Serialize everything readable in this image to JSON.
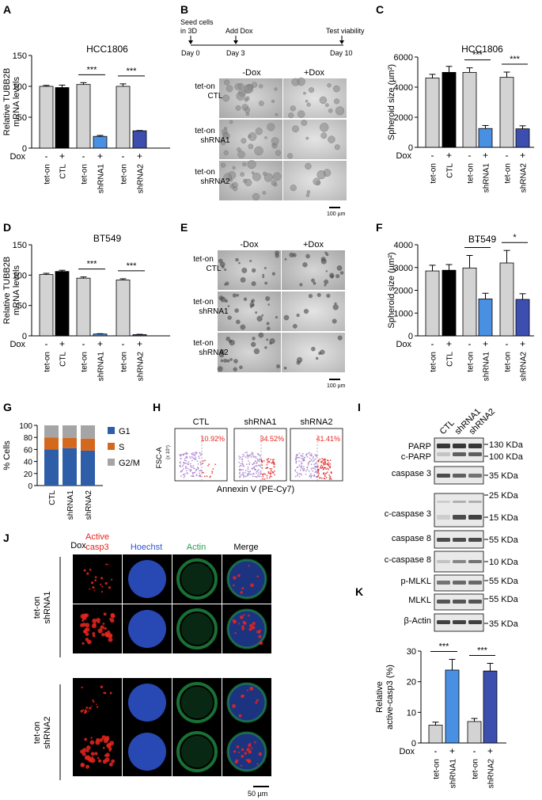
{
  "panels": {
    "A": "A",
    "B": "B",
    "C": "C",
    "D": "D",
    "E": "E",
    "F": "F",
    "G": "G",
    "H": "H",
    "I": "I",
    "J": "J",
    "K": "K"
  },
  "common": {
    "dox": "Dox",
    "minus": "-",
    "plus": "+",
    "tet_on": "tet-on",
    "ctl": "CTL",
    "shrna1": "shRNA1",
    "shrna2": "shRNA2",
    "sig3": "***",
    "sig1": "*",
    "minus_dox": "-Dox",
    "plus_dox": "+Dox",
    "scale_100": "100 µm",
    "scale_50": "50 µm"
  },
  "timeline": {
    "seed": "Seed cells",
    "seed2": "in 3D",
    "add_dox": "Add Dox",
    "test": "Test viability",
    "day0": "Day 0",
    "day3": "Day 3",
    "day10": "Day 10"
  },
  "colors": {
    "ctl_minus": "#d3d3d3",
    "ctl_plus": "#000000",
    "sh1_plus": "#4a90e2",
    "sh2_plus": "#3d4fae",
    "g1": "#2e5ea8",
    "s": "#d4691e",
    "g2m": "#a5a5a5",
    "red": "#e8261e",
    "blue": "#2f55d4",
    "green": "#22a04a"
  },
  "flow": {
    "ylabel": "FSC-A",
    "yunit": "(x 10⁵)",
    "xlabel": "Annexin V (PE-Cy7)",
    "plots": [
      {
        "label": "CTL",
        "pct": "10.92%"
      },
      {
        "label": "shRNA1",
        "pct": "34.52%"
      },
      {
        "label": "shRNA2",
        "pct": "41.41%"
      }
    ]
  },
  "western": {
    "lanes": [
      "CTL",
      "shRNA1",
      "shRNA2"
    ],
    "rows": [
      {
        "name": "PARP",
        "name2": "c-PARP",
        "kda": "130 KDa",
        "kda2": "100 KDa"
      },
      {
        "name": "caspase 3",
        "kda": "35 KDa"
      },
      {
        "name": "",
        "kda": "25 KDa"
      },
      {
        "name": "c-caspase 3",
        "kda": "15 KDa"
      },
      {
        "name": "caspase 8",
        "kda": "55 KDa"
      },
      {
        "name": "c-caspase 8",
        "kda": "10 KDa"
      },
      {
        "name": "p-MLKL",
        "kda": "55 KDa"
      },
      {
        "name": "MLKL",
        "kda": "55 KDa"
      },
      {
        "name": "β-Actin",
        "kda": "35 KDa"
      }
    ]
  },
  "imaging": {
    "dox": "Dox",
    "headers": [
      "Active",
      "casp3",
      "Hoechst",
      "Actin",
      "Merge"
    ]
  },
  "chart_data": [
    {
      "id": "A",
      "type": "bar",
      "title": "HCC1806",
      "ylabel": "Relative TUBB2B mRNA levels",
      "ylabel1": "Relative TUBB2B",
      "ylabel2": "mRNA levels",
      "ylim": [
        0,
        150
      ],
      "yticks": [
        0,
        50,
        100,
        150
      ],
      "groups": [
        "CTL",
        "shRNA1",
        "shRNA2"
      ],
      "dox": [
        "-",
        "+",
        "-",
        "+",
        "-",
        "+"
      ],
      "values": [
        100,
        98,
        103,
        19,
        100,
        28
      ],
      "errors": [
        1.5,
        4,
        3,
        1.5,
        4,
        0.5
      ],
      "sig": [
        {
          "pair": [
            2,
            3
          ],
          "label": "***"
        },
        {
          "pair": [
            4,
            5
          ],
          "label": "***"
        }
      ]
    },
    {
      "id": "C",
      "type": "bar",
      "title": "HCC1806",
      "ylabel": "Spheroid size (µm²)",
      "ylim": [
        0,
        6000
      ],
      "yticks": [
        0,
        2000,
        4000,
        6000
      ],
      "groups": [
        "CTL",
        "shRNA1",
        "shRNA2"
      ],
      "dox": [
        "-",
        "+",
        "-",
        "+",
        "-",
        "+"
      ],
      "values": [
        4600,
        4980,
        4980,
        1250,
        4650,
        1230
      ],
      "errors": [
        250,
        400,
        300,
        200,
        350,
        200
      ],
      "sig": [
        {
          "pair": [
            2,
            3
          ],
          "label": "***"
        },
        {
          "pair": [
            4,
            5
          ],
          "label": "***"
        }
      ]
    },
    {
      "id": "D",
      "type": "bar",
      "title": "BT549",
      "ylabel": "Relative TUBB2B mRNA levels",
      "ylabel1": "Relative TUBB2B",
      "ylabel2": "mRNA levels",
      "ylim": [
        0,
        150
      ],
      "yticks": [
        0,
        50,
        100,
        150
      ],
      "groups": [
        "CTL",
        "shRNA1",
        "shRNA2"
      ],
      "dox": [
        "-",
        "+",
        "-",
        "+",
        "-",
        "+"
      ],
      "values": [
        101,
        106,
        95,
        3,
        92,
        2
      ],
      "errors": [
        2,
        2,
        2,
        0.5,
        2,
        0.5
      ],
      "sig": [
        {
          "pair": [
            2,
            3
          ],
          "label": "***"
        },
        {
          "pair": [
            4,
            5
          ],
          "label": "***"
        }
      ]
    },
    {
      "id": "F",
      "type": "bar",
      "title": "BT549",
      "ylabel": "Spheroid size (µm²)",
      "ylim": [
        0,
        4000
      ],
      "yticks": [
        0,
        1000,
        2000,
        3000,
        4000
      ],
      "groups": [
        "CTL",
        "shRNA1",
        "shRNA2"
      ],
      "dox": [
        "-",
        "+",
        "-",
        "+",
        "-",
        "+"
      ],
      "values": [
        2850,
        2880,
        2980,
        1620,
        3200,
        1600
      ],
      "errors": [
        250,
        250,
        550,
        250,
        550,
        250
      ],
      "sig": [
        {
          "pair": [
            2,
            3
          ],
          "label": "*"
        },
        {
          "pair": [
            4,
            5
          ],
          "label": "*"
        }
      ]
    },
    {
      "id": "G",
      "type": "bar",
      "stacked": true,
      "ylabel": "% Cells",
      "ylim": [
        0,
        100
      ],
      "yticks": [
        0,
        20,
        40,
        60,
        80,
        100
      ],
      "categories": [
        "CTL",
        "shRNA1",
        "shRNA2"
      ],
      "series": [
        {
          "name": "G1",
          "values": [
            60,
            62,
            58
          ]
        },
        {
          "name": "S",
          "values": [
            20,
            17,
            20
          ]
        },
        {
          "name": "G2/M",
          "values": [
            20,
            21,
            22
          ]
        }
      ]
    },
    {
      "id": "K",
      "type": "bar",
      "ylabel": "Relative active-casp3 (%)",
      "ylabel1": "Relative",
      "ylabel2": "active-casp3 (%)",
      "ylim": [
        0,
        30
      ],
      "yticks": [
        0,
        10,
        20,
        30
      ],
      "groups": [
        "shRNA1",
        "shRNA2"
      ],
      "dox": [
        "-",
        "+",
        "-",
        "+"
      ],
      "values": [
        5.8,
        23.8,
        7,
        23.5
      ],
      "errors": [
        1,
        3.5,
        1,
        2.5
      ],
      "sig": [
        {
          "pair": [
            0,
            1
          ],
          "label": "***"
        },
        {
          "pair": [
            2,
            3
          ],
          "label": "***"
        }
      ]
    }
  ]
}
